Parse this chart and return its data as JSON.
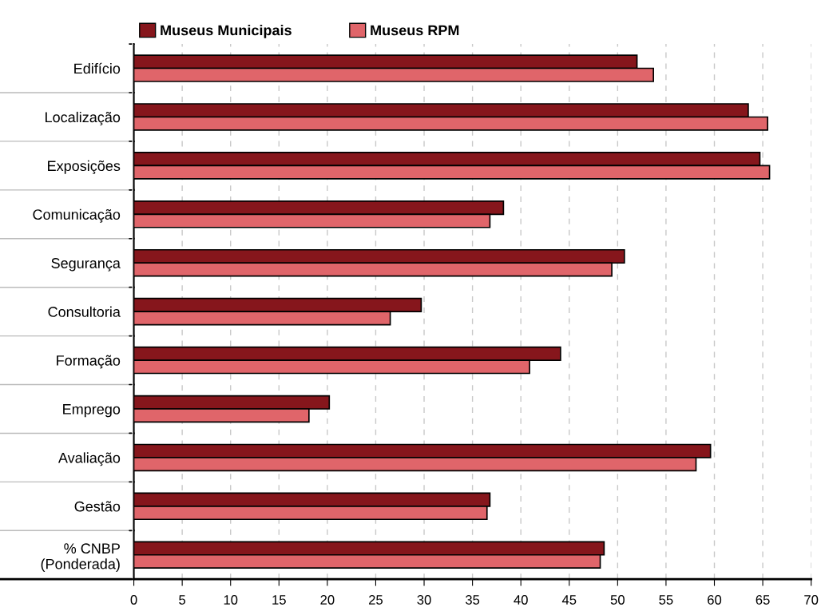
{
  "chart_data": {
    "type": "bar",
    "orientation": "horizontal",
    "categories": [
      "Edifício",
      "Localização",
      "Exposições",
      "Comunicação",
      "Segurança",
      "Consultoria",
      "Formação",
      "Emprego",
      "Avaliação",
      "Gestão",
      "% CNBP\n(Ponderada)"
    ],
    "series": [
      {
        "name": "Museus Municipais",
        "color": "#86161c",
        "values": [
          52.0,
          63.5,
          64.7,
          38.2,
          50.7,
          29.7,
          44.1,
          20.2,
          59.6,
          36.8,
          48.6
        ]
      },
      {
        "name": "Museus RPM",
        "color": "#e0656a",
        "values": [
          53.7,
          65.5,
          65.7,
          36.8,
          49.4,
          26.5,
          40.9,
          18.1,
          58.1,
          36.5,
          48.2
        ]
      }
    ],
    "xlim": [
      0,
      70
    ],
    "xticks": [
      0,
      5,
      10,
      15,
      20,
      25,
      30,
      35,
      40,
      45,
      50,
      55,
      60,
      65,
      70
    ],
    "grid": "x",
    "legend": "top left"
  }
}
